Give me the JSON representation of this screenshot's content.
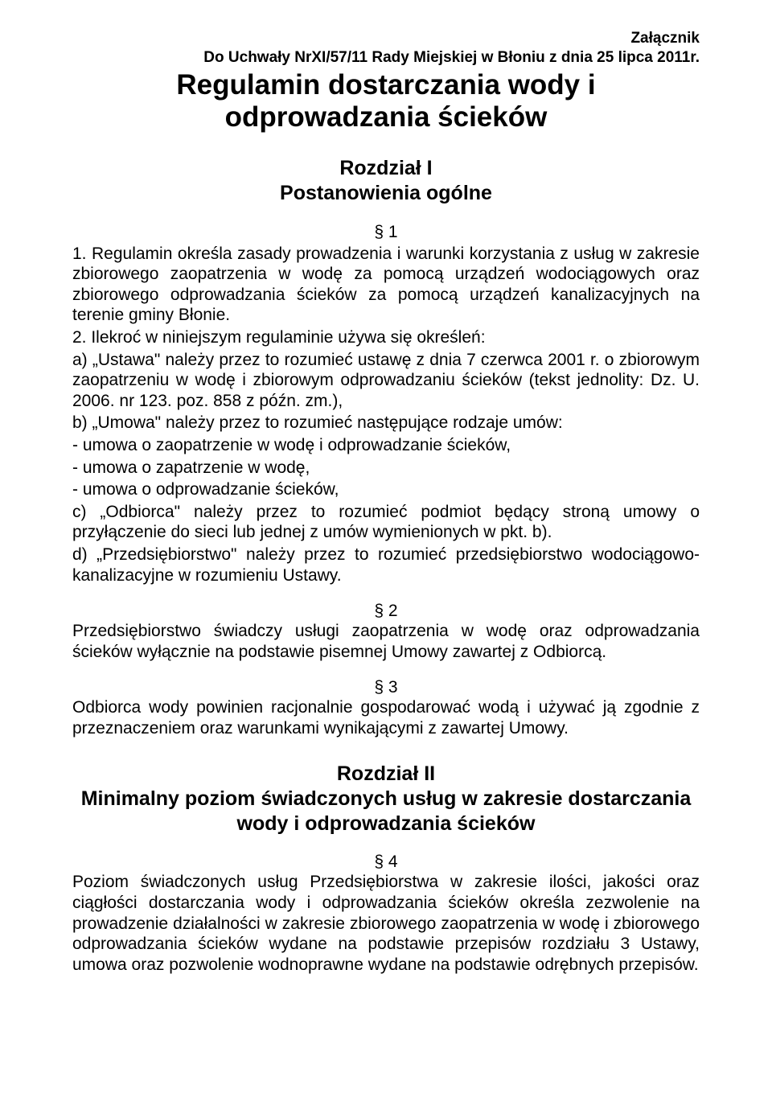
{
  "header": {
    "annex": "Załącznik",
    "sub": "Do Uchwały NrXI/57/11 Rady Miejskiej w Błoniu z dnia 25 lipca 2011r."
  },
  "title": "Regulamin dostarczania wody i odprowadzania ścieków",
  "chapter1": {
    "heading": "Rozdział I",
    "subheading": "Postanowienia ogólne"
  },
  "s1": {
    "num": "§ 1",
    "p1": "1. Regulamin określa zasady prowadzenia i warunki korzystania z usług w zakresie zbiorowego zaopatrzenia w wodę za pomocą urządzeń wodociągowych oraz zbiorowego odprowadzania ścieków za pomocą urządzeń kanalizacyjnych na terenie gminy Błonie.",
    "p2": "2. Ilekroć w niniejszym regulaminie używa się określeń:",
    "a": "a) „Ustawa\" należy przez to rozumieć ustawę z dnia 7 czerwca 2001 r. o zbiorowym zaopatrzeniu w wodę i zbiorowym odprowadzaniu ścieków (tekst jednolity: Dz. U. 2006. nr 123. poz. 858 z późn. zm.),",
    "b": "b) „Umowa\" należy przez to rozumieć następujące rodzaje umów:",
    "b1": "- umowa o zaopatrzenie w wodę i odprowadzanie ścieków,",
    "b2": "- umowa o zapatrzenie w wodę,",
    "b3": "- umowa o odprowadzanie ścieków,",
    "c": "c) „Odbiorca\" należy przez to rozumieć podmiot będący stroną umowy o przyłączenie do sieci lub jednej z umów wymienionych w pkt. b).",
    "d": "d) „Przedsiębiorstwo\" należy przez to rozumieć przedsiębiorstwo wodociągowo-kanalizacyjne w rozumieniu Ustawy."
  },
  "s2": {
    "num": "§ 2",
    "p": "Przedsiębiorstwo świadczy usługi zaopatrzenia w wodę oraz odprowadzania ścieków wyłącznie na podstawie pisemnej Umowy zawartej z Odbiorcą."
  },
  "s3": {
    "num": "§ 3",
    "p": "Odbiorca wody powinien racjonalnie gospodarować wodą i używać ją zgodnie z przeznaczeniem oraz warunkami wynikającymi z zawartej Umowy."
  },
  "chapter2": {
    "heading": "Rozdział II",
    "subheading": "Minimalny poziom świadczonych usług w zakresie dostarczania wody i odprowadzania ścieków"
  },
  "s4": {
    "num": "§ 4",
    "p": "Poziom świadczonych usług Przedsiębiorstwa w zakresie ilości, jakości oraz ciągłości dostarczania wody i odprowadzania ścieków określa zezwolenie na prowadzenie działalności w zakresie zbiorowego zaopatrzenia w wodę i zbiorowego odprowadzania ścieków wydane na podstawie przepisów rozdziału 3 Ustawy, umowa oraz pozwolenie wodnoprawne wydane na podstawie odrębnych przepisów."
  }
}
